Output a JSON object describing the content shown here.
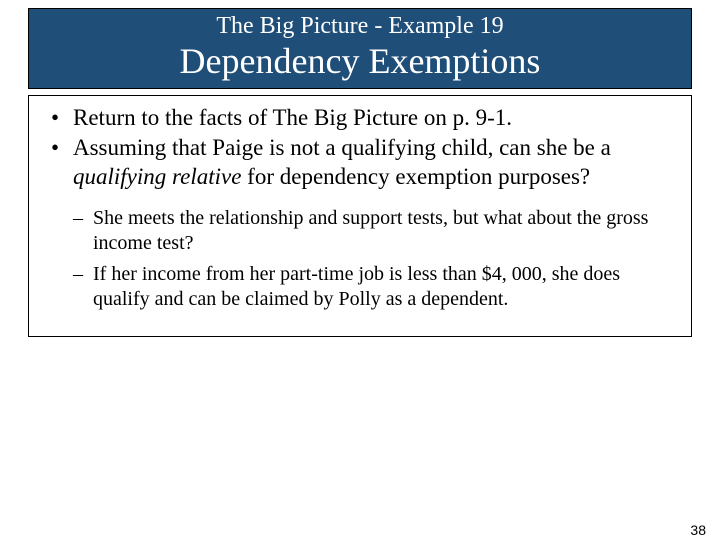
{
  "header": {
    "subtitle": "The Big Picture - Example 19",
    "title": "Dependency Exemptions",
    "background_color": "#1f4e79",
    "text_color": "#ffffff",
    "border_color": "#000000",
    "subtitle_fontsize": 24,
    "title_fontsize": 36
  },
  "content": {
    "border_color": "#000000",
    "bullets": [
      {
        "text": "Return to the facts of The Big Picture on p. 9-1."
      },
      {
        "prefix": "Assuming that Paige is not a qualifying child, can she be a ",
        "italic": "qualifying relative",
        "suffix": " for dependency exemption purposes?"
      }
    ],
    "sub_bullets": [
      "She meets the relationship and support tests, but what about the gross income test?",
      "If her income from her part-time job is less than $4, 000, she does qualify and can be claimed by Polly as a dependent."
    ],
    "bullet_fontsize": 23,
    "sub_bullet_fontsize": 20,
    "text_color": "#000000"
  },
  "page_number": "38",
  "slide_background": "#ffffff"
}
